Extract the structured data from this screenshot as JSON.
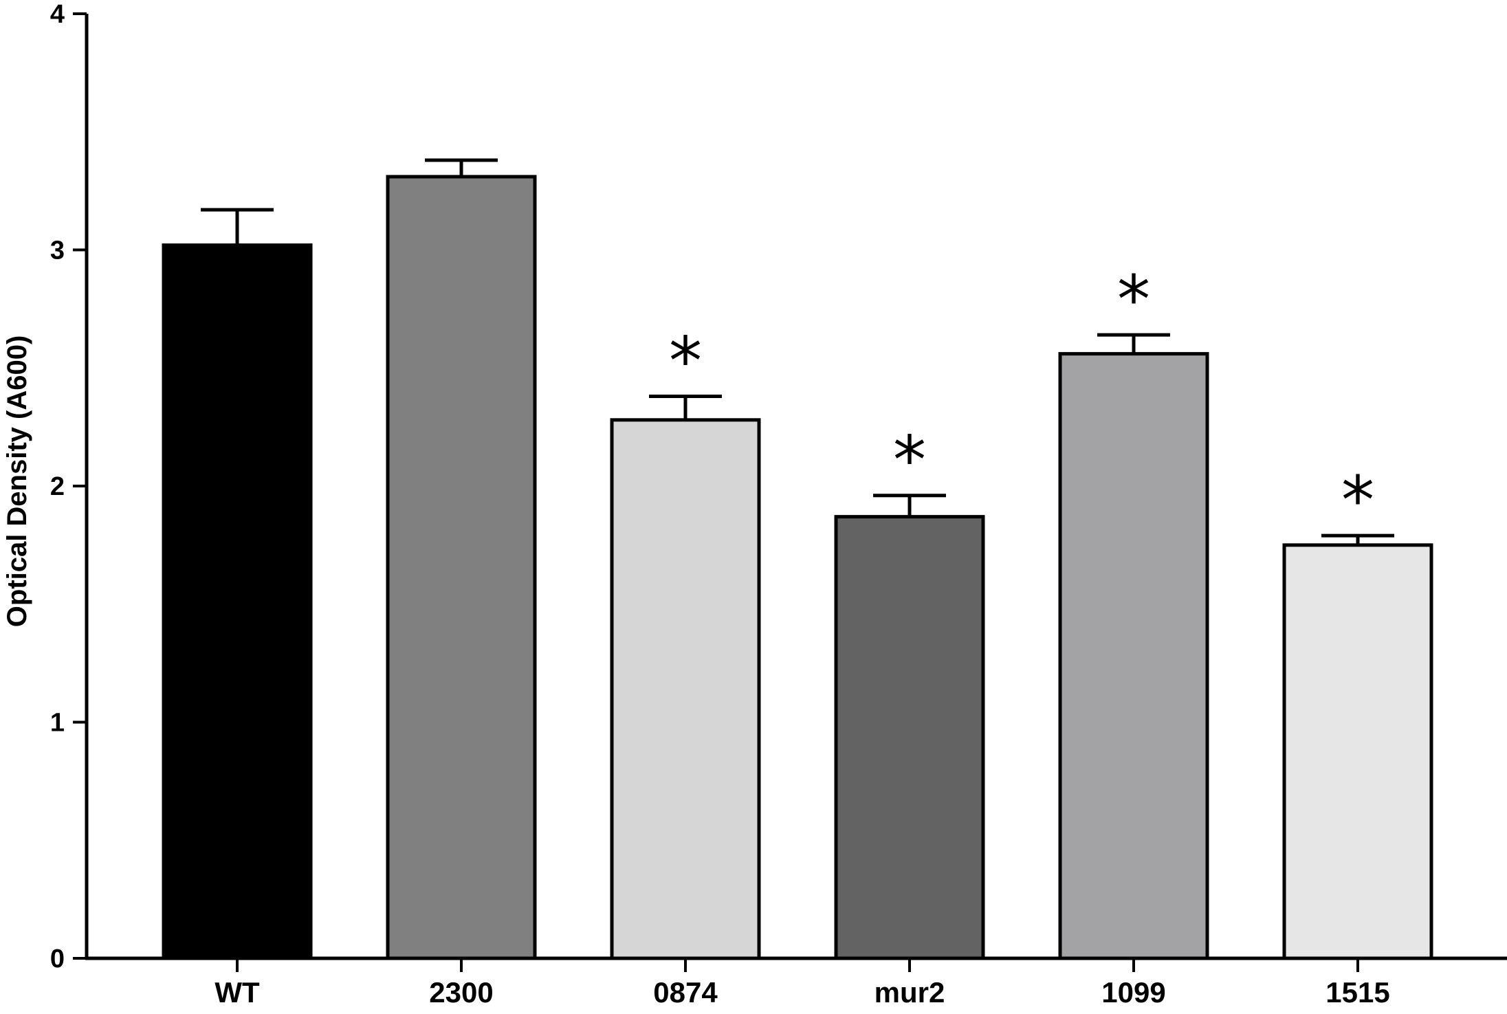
{
  "chart_data": {
    "type": "bar",
    "title": "",
    "xlabel": "",
    "ylabel": "Optical Density (A600)",
    "ylim": [
      0,
      4
    ],
    "yticks": [
      0,
      1,
      2,
      3,
      4
    ],
    "grid": false,
    "legend": "none",
    "categories": [
      "WT",
      "2300",
      "0874",
      "mur2",
      "1099",
      "1515"
    ],
    "values": [
      3.02,
      3.31,
      2.28,
      1.87,
      2.56,
      1.75
    ],
    "errors": [
      0.15,
      0.07,
      0.1,
      0.09,
      0.08,
      0.04
    ],
    "colors": [
      "#000000",
      "#808080",
      "#d6d6d6",
      "#636363",
      "#a3a3a6",
      "#e6e6e6"
    ],
    "significance": [
      "",
      "",
      "*",
      "*",
      "*",
      "*"
    ]
  }
}
